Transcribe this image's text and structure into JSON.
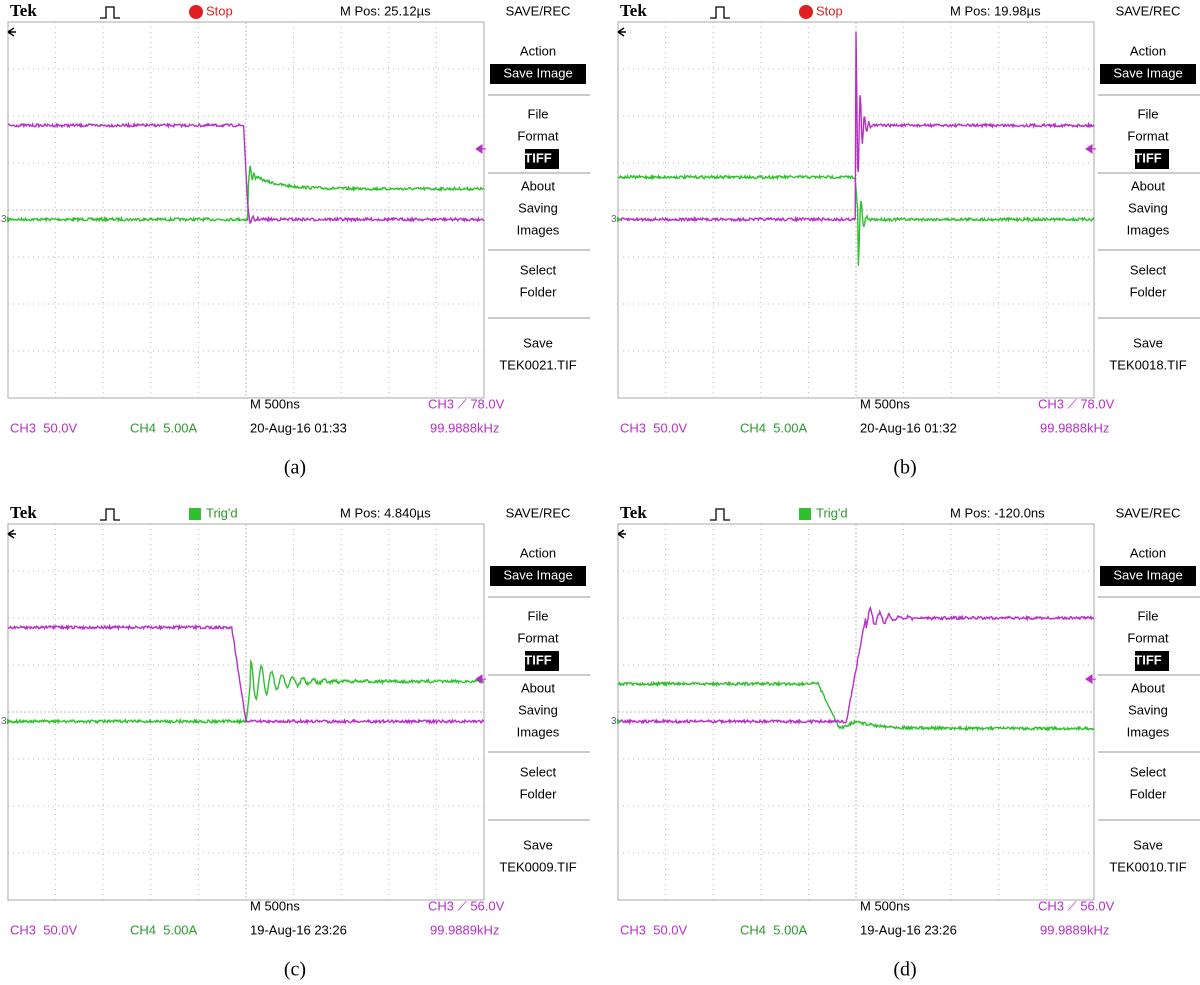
{
  "panels": [
    {
      "brand": "Tek",
      "status": "Stop",
      "mpos": "M Pos: 25.12µs",
      "menu_title": "SAVE/REC",
      "menu": [
        [
          "Action",
          "Save Image"
        ],
        [
          "File",
          "Format",
          "TIFF"
        ],
        [
          "About",
          "Saving",
          "Images"
        ],
        [
          "Select",
          "Folder"
        ],
        [
          "Save",
          "TEK0021.TIF"
        ]
      ],
      "ground_marker": "3",
      "timebase": "M 500ns",
      "trigger": "CH3 ⟋ 78.0V",
      "ch3": "CH3  50.0V",
      "ch4": "CH4  5.00A",
      "datetime": "20-Aug-16 01:33",
      "frequency": "99.9888kHz",
      "caption": "(a)"
    },
    {
      "brand": "Tek",
      "status": "Stop",
      "mpos": "M Pos: 19.98µs",
      "menu_title": "SAVE/REC",
      "menu": [
        [
          "Action",
          "Save Image"
        ],
        [
          "File",
          "Format",
          "TIFF"
        ],
        [
          "About",
          "Saving",
          "Images"
        ],
        [
          "Select",
          "Folder"
        ],
        [
          "Save",
          "TEK0018.TIF"
        ]
      ],
      "ground_marker": "3",
      "timebase": "M 500ns",
      "trigger": "CH3 ⟋ 78.0V",
      "ch3": "CH3  50.0V",
      "ch4": "CH4  5.00A",
      "datetime": "20-Aug-16 01:32",
      "frequency": "99.9888kHz",
      "caption": "(b)"
    },
    {
      "brand": "Tek",
      "status": "Trig'd",
      "mpos": "M Pos: 4.840µs",
      "menu_title": "SAVE/REC",
      "menu": [
        [
          "Action",
          "Save Image"
        ],
        [
          "File",
          "Format",
          "TIFF"
        ],
        [
          "About",
          "Saving",
          "Images"
        ],
        [
          "Select",
          "Folder"
        ],
        [
          "Save",
          "TEK0009.TIF"
        ]
      ],
      "ground_marker": "3",
      "timebase": "M 500ns",
      "trigger": "CH3 ⟋ 56.0V",
      "ch3": "CH3  50.0V",
      "ch4": "CH4  5.00A",
      "datetime": "19-Aug-16 23:26",
      "frequency": "99.9889kHz",
      "caption": "(c)"
    },
    {
      "brand": "Tek",
      "status": "Trig'd",
      "mpos": "M Pos: -120.0ns",
      "menu_title": "SAVE/REC",
      "menu": [
        [
          "Action",
          "Save Image"
        ],
        [
          "File",
          "Format",
          "TIFF"
        ],
        [
          "About",
          "Saving",
          "Images"
        ],
        [
          "Select",
          "Folder"
        ],
        [
          "Save",
          "TEK0010.TIF"
        ]
      ],
      "ground_marker": "3",
      "timebase": "M 500ns",
      "trigger": "CH3 ⟋ 56.0V",
      "ch3": "CH3  50.0V",
      "ch4": "CH4  5.00A",
      "datetime": "19-Aug-16 23:26",
      "frequency": "99.9889kHz",
      "caption": "(d)"
    }
  ]
}
